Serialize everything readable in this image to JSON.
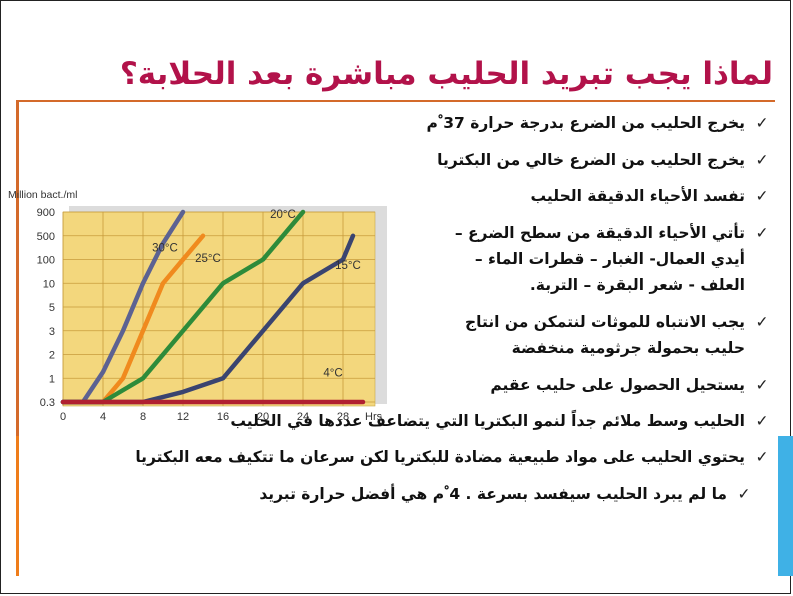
{
  "slide": {
    "title": "لماذا يجب تبريد الحليب مباشرة بعد الحلابة؟",
    "check_glyph": "✓",
    "bullets": [
      {
        "text": "يخرج الحليب من الضرع بدرجة حرارة 37 ْم"
      },
      {
        "text": "يخرج الحليب من الضرع خالي من البكتريا"
      },
      {
        "text": "تفسد الأحياء الدقيقة الحليب"
      },
      {
        "lines": [
          "تأتي الأحياء الدقيقة من سطح الضرع –",
          "أيدي العمال- الغبار – قطرات الماء –",
          "العلف - شعر البقرة – التربة."
        ]
      },
      {
        "lines": [
          "يجب الانتباه للموثات لنتمكن من انتاج",
          "حليب بحمولة جرثومية منخفضة"
        ]
      },
      {
        "text": "يستحيل الحصول على حليب عقيم"
      },
      {
        "text": "الحليب وسط ملائم جداً لنمو البكتريا التي يتضاعف عددها في الحليب"
      },
      {
        "text": "يحتوي الحليب على مواد طبيعية مضادة للبكتريا لكن سرعان ما تتكيف معه البكتريا"
      },
      {
        "text": "ما لم يبرد الحليب سيفسد بسرعة . 4 ْم هي أفضل حرارة تبريد"
      }
    ],
    "colors": {
      "title": "#b2124a",
      "rule": "#d46a2a",
      "accent_left": "#ef7d1a",
      "accent_right": "#3fb1e6",
      "chart_bg": "#f3d77d"
    }
  },
  "chart_data": {
    "type": "line",
    "ylabel": "Million bact./ml",
    "xlabel": "Hrs",
    "x_ticks": [
      "0",
      "4",
      "8",
      "12",
      "16",
      "20",
      "24",
      "28"
    ],
    "y_ticks": [
      "0.3",
      "1",
      "2",
      "3",
      "5",
      "10",
      "100",
      "500",
      "900"
    ],
    "y_scale": "categorical-log-like",
    "xlim": [
      0,
      30
    ],
    "series": [
      {
        "name": "30°C",
        "color": "#5c6292",
        "points": [
          [
            0,
            0.3
          ],
          [
            2,
            0.3
          ],
          [
            4,
            1.2
          ],
          [
            6,
            3
          ],
          [
            8,
            10
          ],
          [
            10,
            300
          ],
          [
            12,
            900
          ]
        ]
      },
      {
        "name": "25°C",
        "color": "#f08a1e",
        "points": [
          [
            0,
            0.3
          ],
          [
            4,
            0.3
          ],
          [
            6,
            1
          ],
          [
            8,
            3
          ],
          [
            10,
            10
          ],
          [
            12,
            100
          ],
          [
            14,
            500
          ]
        ]
      },
      {
        "name": "20°C",
        "color": "#2e8b3a",
        "points": [
          [
            0,
            0.3
          ],
          [
            4,
            0.3
          ],
          [
            8,
            1
          ],
          [
            12,
            3
          ],
          [
            16,
            10
          ],
          [
            20,
            100
          ],
          [
            24,
            900
          ]
        ]
      },
      {
        "name": "15°C",
        "color": "#3a4470",
        "points": [
          [
            0,
            0.3
          ],
          [
            8,
            0.3
          ],
          [
            12,
            0.5
          ],
          [
            16,
            1
          ],
          [
            20,
            3
          ],
          [
            24,
            10
          ],
          [
            28,
            100
          ],
          [
            29,
            500
          ]
        ]
      },
      {
        "name": "4°C",
        "color": "#b02030",
        "points": [
          [
            0,
            0.3
          ],
          [
            28,
            0.3
          ],
          [
            30,
            0.3
          ]
        ]
      }
    ]
  }
}
